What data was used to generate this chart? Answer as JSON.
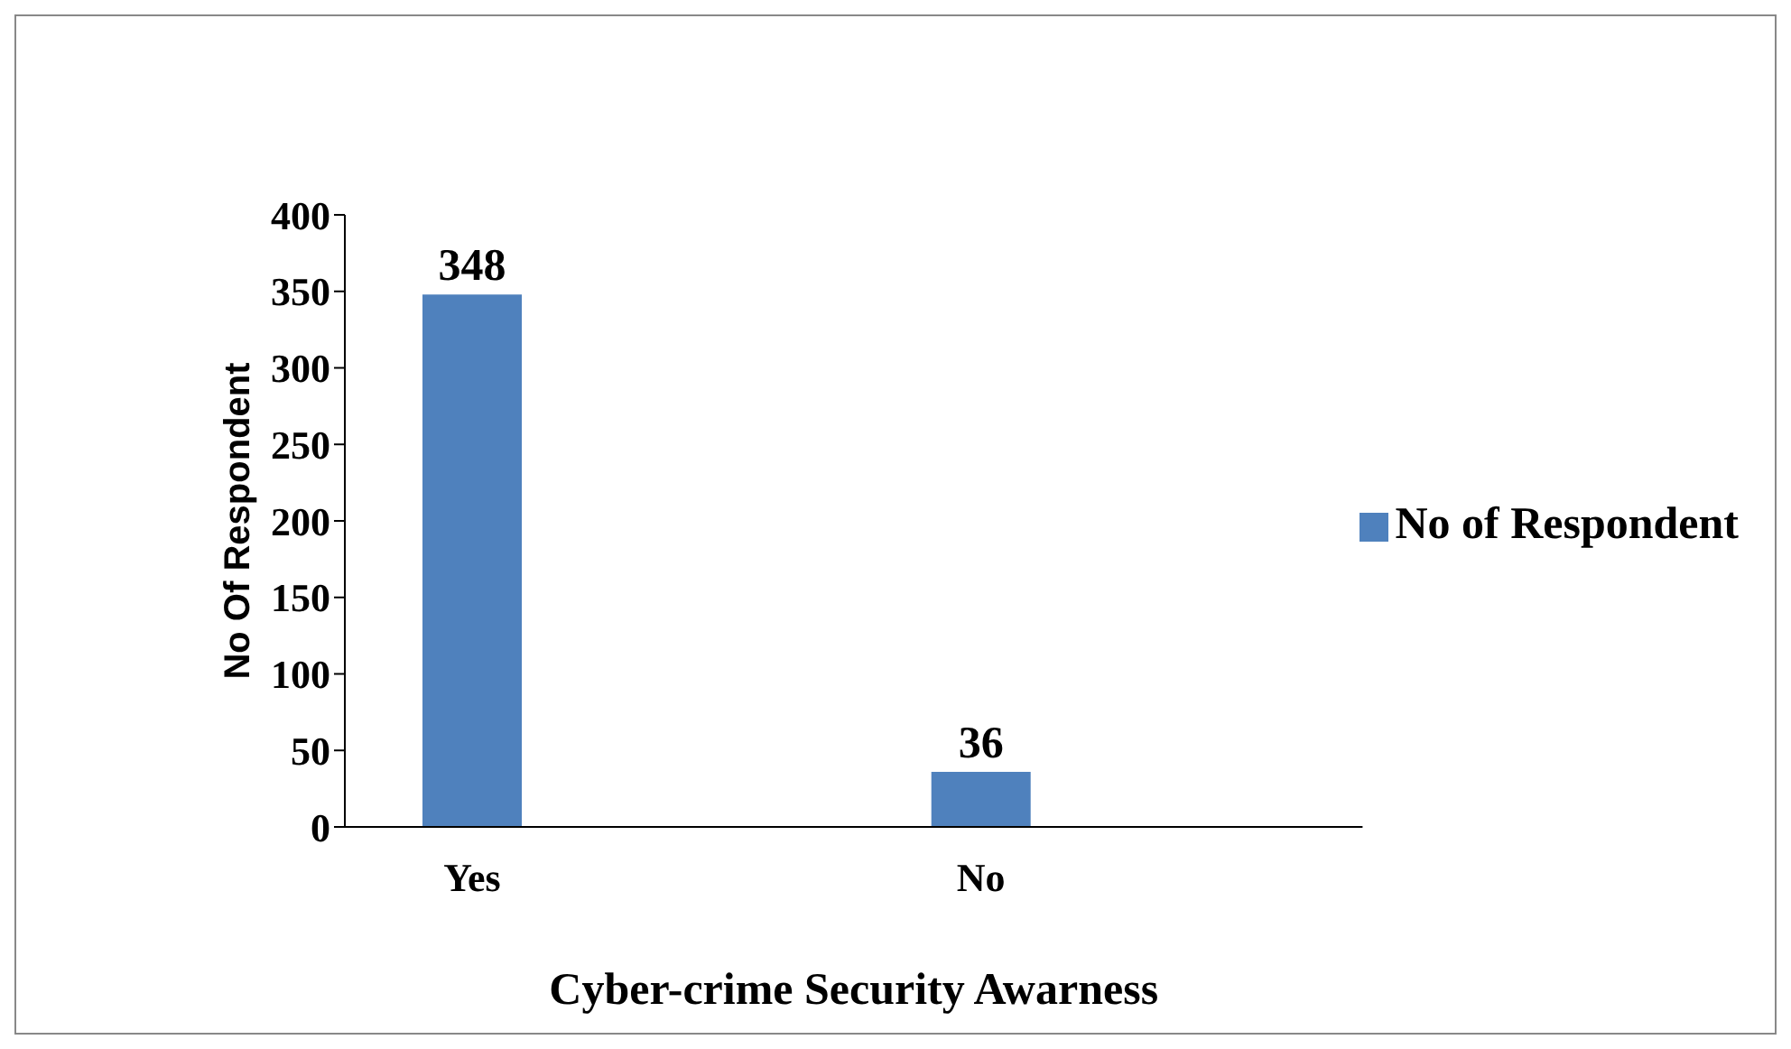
{
  "chart_data": {
    "type": "bar",
    "xlabel": "Cyber-crime Security Awarness",
    "ylabel": "No Of Respondent",
    "categories": [
      "Yes",
      null,
      "No",
      null
    ],
    "series": [
      {
        "name": "No of Respondent",
        "color": "#4f81bd",
        "values": [
          348,
          null,
          36,
          null
        ]
      }
    ],
    "ylim": [
      0,
      400
    ],
    "yticks": [
      0,
      50,
      100,
      150,
      200,
      250,
      300,
      350,
      400
    ],
    "data_labels": true,
    "grid": false,
    "legend": "right"
  }
}
